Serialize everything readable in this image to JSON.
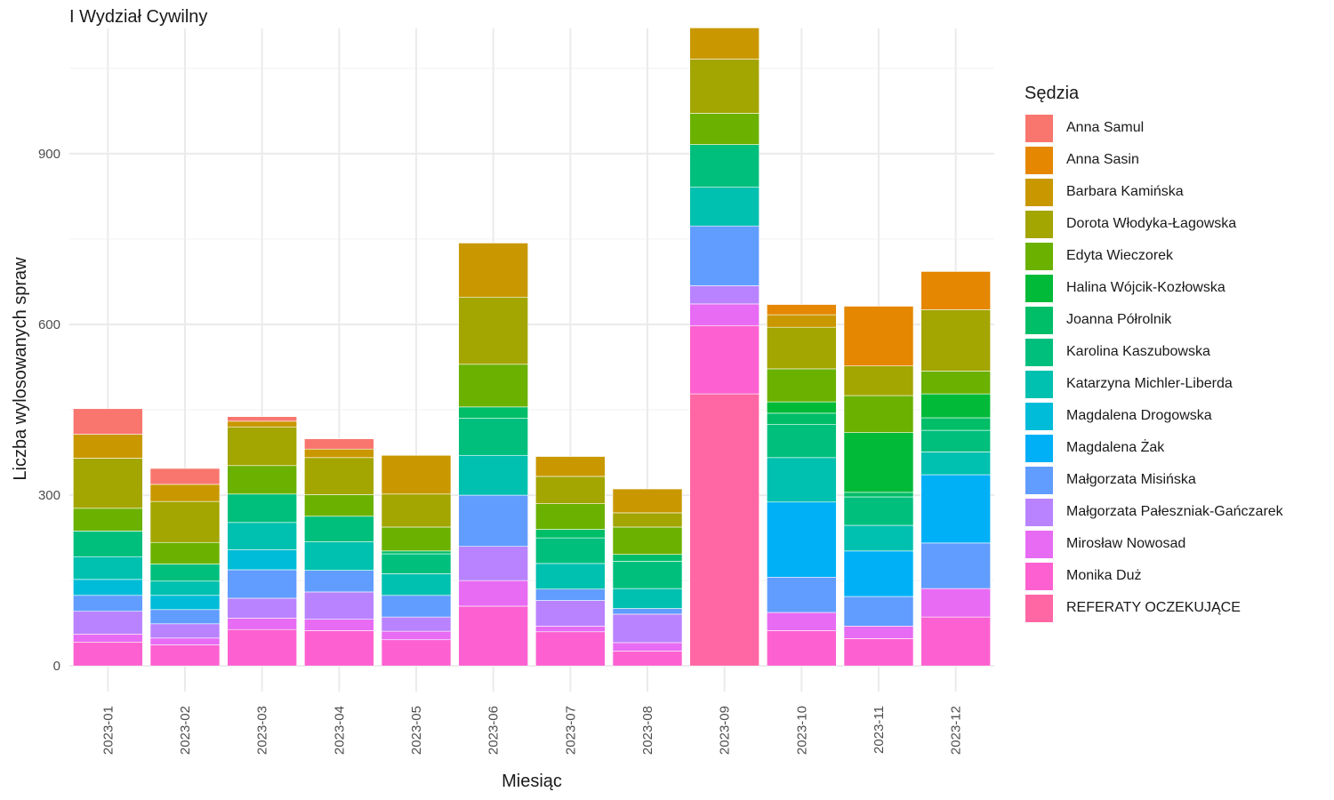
{
  "chart_data": {
    "type": "bar",
    "stacked": true,
    "title": "I Wydział Cywilny",
    "xlabel": "Miesiąc",
    "ylabel": "Liczba wylosowanych spraw",
    "legend_title": "Sędzia",
    "legend_position": "right",
    "grid": true,
    "ylim": [
      -45,
      1120
    ],
    "yticks": [
      0,
      300,
      600,
      900
    ],
    "categories": [
      "2023-01",
      "2023-02",
      "2023-03",
      "2023-04",
      "2023-05",
      "2023-06",
      "2023-07",
      "2023-08",
      "2023-09",
      "2023-10",
      "2023-11",
      "2023-12"
    ],
    "series": [
      {
        "name": "Anna Samul",
        "color": "#F8766D",
        "values": [
          45,
          28,
          8,
          18,
          0,
          0,
          0,
          0,
          0,
          0,
          0,
          0
        ]
      },
      {
        "name": "Anna Sasin",
        "color": "#E58700",
        "values": [
          0,
          0,
          0,
          0,
          0,
          0,
          0,
          0,
          0,
          18,
          105,
          67
        ]
      },
      {
        "name": "Barbara Kamińska",
        "color": "#C99800",
        "values": [
          42,
          30,
          10,
          15,
          68,
          95,
          35,
          42,
          55,
          22,
          0,
          0
        ]
      },
      {
        "name": "Dorota Włodyka-Łagowska",
        "color": "#A3A500",
        "values": [
          88,
          72,
          68,
          65,
          58,
          118,
          48,
          25,
          95,
          73,
          52,
          108
        ]
      },
      {
        "name": "Edyta Wieczorek",
        "color": "#6BB100",
        "values": [
          40,
          38,
          50,
          38,
          42,
          75,
          45,
          48,
          55,
          58,
          65,
          40
        ]
      },
      {
        "name": "Halina Wójcik-Kozłowska",
        "color": "#00BA38",
        "values": [
          0,
          0,
          0,
          0,
          0,
          0,
          0,
          0,
          0,
          20,
          105,
          42
        ]
      },
      {
        "name": "Joanna Półrolnik",
        "color": "#00BE67",
        "values": [
          0,
          0,
          0,
          0,
          5,
          20,
          15,
          12,
          0,
          20,
          8,
          22
        ]
      },
      {
        "name": "Karolina Kaszubowska",
        "color": "#00BF7D",
        "values": [
          45,
          30,
          50,
          45,
          35,
          65,
          45,
          48,
          75,
          58,
          50,
          38
        ]
      },
      {
        "name": "Katarzyna Michler-Liberda",
        "color": "#00C0AF",
        "values": [
          40,
          25,
          48,
          50,
          38,
          70,
          45,
          35,
          68,
          78,
          45,
          40
        ]
      },
      {
        "name": "Magdalena Drogowska",
        "color": "#00BCD8",
        "values": [
          28,
          25,
          35,
          0,
          0,
          0,
          0,
          0,
          0,
          0,
          0,
          0
        ]
      },
      {
        "name": "Magdalena Żak",
        "color": "#00B0F6",
        "values": [
          0,
          0,
          0,
          0,
          0,
          0,
          0,
          0,
          0,
          132,
          80,
          120
        ]
      },
      {
        "name": "Małgorzata Misińska",
        "color": "#619CFF",
        "values": [
          28,
          25,
          50,
          38,
          38,
          90,
          20,
          10,
          105,
          62,
          52,
          80
        ]
      },
      {
        "name": "Małgorzata Pałeszniak-Gańczarek",
        "color": "#B983FF",
        "values": [
          40,
          25,
          35,
          48,
          25,
          60,
          45,
          50,
          32,
          0,
          0,
          0
        ]
      },
      {
        "name": "Mirosław Nowosad",
        "color": "#E76BF3",
        "values": [
          14,
          12,
          20,
          20,
          15,
          45,
          10,
          15,
          38,
          32,
          22,
          50
        ]
      },
      {
        "name": "Monika Duż",
        "color": "#FD61D1",
        "values": [
          42,
          37,
          64,
          62,
          46,
          105,
          60,
          26,
          120,
          62,
          48,
          86
        ]
      },
      {
        "name": "REFERATY OCZEKUJĄCE",
        "color": "#FF67A4",
        "values": [
          0,
          0,
          0,
          0,
          0,
          0,
          0,
          0,
          478,
          0,
          0,
          0
        ]
      }
    ]
  }
}
